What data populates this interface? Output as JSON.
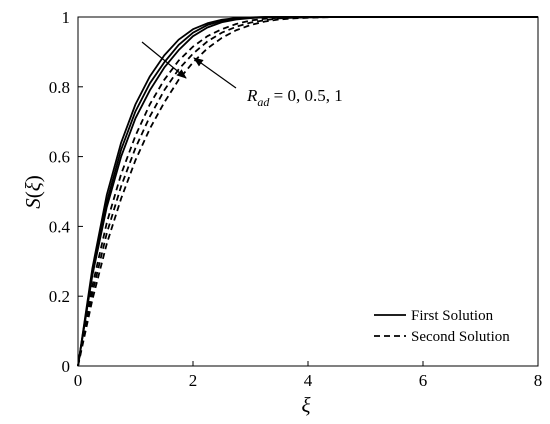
{
  "chart_data": {
    "type": "line",
    "xlabel": "ξ",
    "ylabel_parts": {
      "func": "S",
      "open": "(",
      "var": "ξ",
      "close": ")"
    },
    "xlim": [
      0,
      8
    ],
    "ylim": [
      0,
      1
    ],
    "xticks": [
      "0",
      "2",
      "4",
      "6",
      "8"
    ],
    "yticks": [
      "0",
      "0.2",
      "0.4",
      "0.6",
      "0.8",
      "1"
    ],
    "grid": false,
    "legend_position": "bottom-right",
    "legend": [
      {
        "label": "First Solution",
        "style": "solid"
      },
      {
        "label": "Second Solution",
        "style": "dashed"
      }
    ],
    "annotation": {
      "symbol": "R",
      "subscript": "ad",
      "values": " = 0, 0.5, 1"
    },
    "x": [
      0,
      0.25,
      0.5,
      0.75,
      1.0,
      1.25,
      1.5,
      1.75,
      2.0,
      2.25,
      2.5,
      2.75,
      3.0,
      3.25,
      3.5,
      3.75,
      4.0,
      4.5,
      5.0,
      6.0,
      7.0,
      8.0
    ],
    "series": [
      {
        "style": "solid",
        "param": 0,
        "values": [
          0,
          0.28,
          0.49,
          0.64,
          0.75,
          0.83,
          0.89,
          0.935,
          0.965,
          0.982,
          0.992,
          0.997,
          0.999,
          1.0,
          1.0,
          1.0,
          1.0,
          1.0,
          1.0,
          1.0,
          1.0,
          1.0
        ]
      },
      {
        "style": "solid",
        "param": 0.5,
        "values": [
          0,
          0.27,
          0.47,
          0.62,
          0.73,
          0.81,
          0.87,
          0.92,
          0.955,
          0.977,
          0.989,
          0.995,
          0.998,
          1.0,
          1.0,
          1.0,
          1.0,
          1.0,
          1.0,
          1.0,
          1.0,
          1.0
        ]
      },
      {
        "style": "solid",
        "param": 1,
        "values": [
          0,
          0.26,
          0.455,
          0.6,
          0.71,
          0.79,
          0.855,
          0.905,
          0.945,
          0.97,
          0.985,
          0.993,
          0.997,
          0.999,
          1.0,
          1.0,
          1.0,
          1.0,
          1.0,
          1.0,
          1.0,
          1.0
        ]
      },
      {
        "style": "dashed",
        "param": 0,
        "values": [
          0,
          0.23,
          0.41,
          0.55,
          0.66,
          0.75,
          0.82,
          0.875,
          0.915,
          0.945,
          0.965,
          0.98,
          0.99,
          0.995,
          0.998,
          0.999,
          1.0,
          1.0,
          1.0,
          1.0,
          1.0,
          1.0
        ]
      },
      {
        "style": "dashed",
        "param": 0.5,
        "values": [
          0,
          0.21,
          0.38,
          0.515,
          0.625,
          0.715,
          0.79,
          0.85,
          0.895,
          0.93,
          0.955,
          0.972,
          0.984,
          0.991,
          0.996,
          0.998,
          0.999,
          1.0,
          1.0,
          1.0,
          1.0,
          1.0
        ]
      },
      {
        "style": "dashed",
        "param": 1,
        "values": [
          0,
          0.19,
          0.35,
          0.48,
          0.59,
          0.68,
          0.755,
          0.82,
          0.87,
          0.91,
          0.94,
          0.962,
          0.977,
          0.987,
          0.993,
          0.996,
          0.998,
          1.0,
          1.0,
          1.0,
          1.0,
          1.0
        ]
      }
    ]
  }
}
